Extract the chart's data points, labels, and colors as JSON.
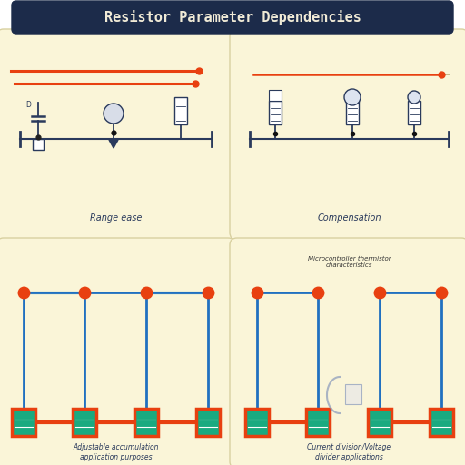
{
  "title": "Resistor Parameter Dependencies",
  "title_bg": "#1c2b4a",
  "title_fg": "#f0ead6",
  "panel_bg": "#faf5d8",
  "page_bg": "#ffffff",
  "gap_color": "#ffffff",
  "orange": "#e84010",
  "blue": "#2070c0",
  "teal": "#70b8c8",
  "comp_color": "#2a3a5c",
  "green_box_face": "#1aaa80",
  "green_box_edge": "#e84010",
  "panel_edge": "#d8d0a0",
  "top_panels": [
    {
      "label": "Range ease",
      "two_lines": true,
      "has_cyan": true
    },
    {
      "label": "Compensation",
      "two_lines": false,
      "has_cyan": false
    }
  ],
  "bot_panels": [
    {
      "label": "Adjustable accumulation\napplication purposes",
      "n_blocks": 4,
      "has_caption": false
    },
    {
      "label": "Current division/Voltage\ndivider applications",
      "n_blocks": 4,
      "has_caption": true,
      "caption": "Microcontroller thermistor\ncharacteristics"
    }
  ]
}
